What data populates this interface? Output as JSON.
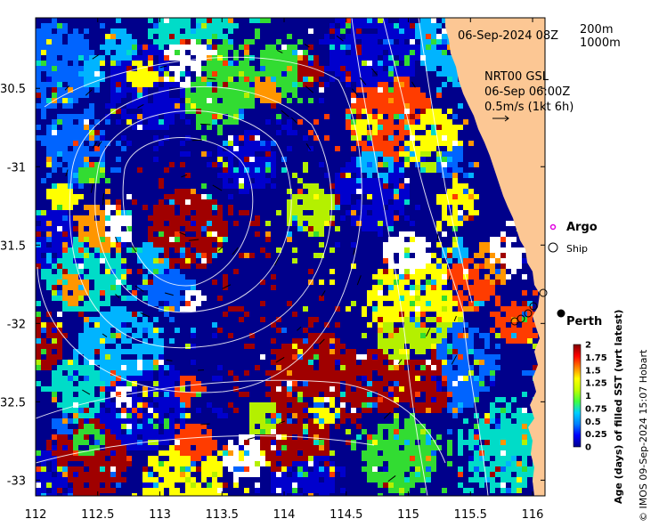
{
  "map": {
    "date_label": "06-Sep-2024 08Z",
    "depth_legend": [
      "200m",
      "1000m"
    ],
    "current_source": "NRT00 GSL",
    "current_time": "06-Sep 06:00Z",
    "current_scale": "0.5m/s (1kt 6h)",
    "x_ticks": [
      "112",
      "112.5",
      "113",
      "113.5",
      "114",
      "114.5",
      "115",
      "115.5",
      "116"
    ],
    "y_ticks": [
      "-30.5",
      "-31",
      "-31.5",
      "-32",
      "-32.5",
      "-33"
    ],
    "x_tick_values": [
      112,
      112.5,
      113,
      113.5,
      114,
      114.5,
      115,
      115.5,
      116
    ],
    "y_tick_values": [
      -30.5,
      -31,
      -31.5,
      -32,
      -32.5,
      -33
    ],
    "lon_range": [
      112,
      116.1
    ],
    "lat_range": [
      -33.1,
      -30.05
    ],
    "legend": {
      "argo_label": "Argo",
      "ship_label": "Ship",
      "city_label": "Perth",
      "argo_color": "#e000e0"
    },
    "colorbar": {
      "label": "Age (days) of filled SST (wrt latest)",
      "ticks": [
        "0",
        "0.25",
        "0.5",
        "0.75",
        "1",
        "1.25",
        "1.5",
        "1.75",
        "2"
      ],
      "range": [
        0,
        2
      ],
      "colors": [
        "#00008b",
        "#0000ff",
        "#0080ff",
        "#00d0ff",
        "#40ff40",
        "#c0ff00",
        "#ffff00",
        "#ff8000",
        "#ff0000",
        "#800000"
      ]
    },
    "credit": "© IMOS 09-Sep-2024 15:07 Hobart",
    "land_color": "#fcc794",
    "ocean_color": "#00008b"
  }
}
